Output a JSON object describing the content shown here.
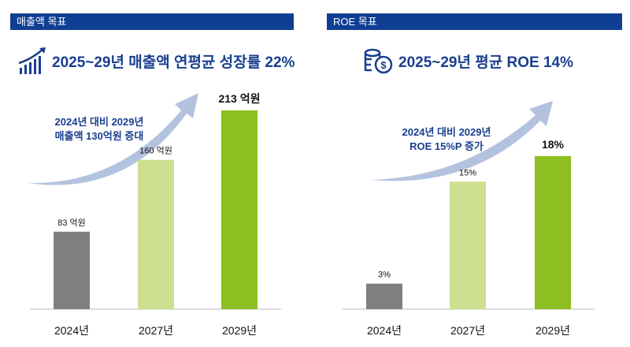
{
  "panels": [
    {
      "header": "매출액 목표",
      "title": "2025~29년 매출액 연평균 성장률 22%",
      "icon": "growth-chart-icon"
    },
    {
      "header": "ROE 목표",
      "title": "2025~29년 평균 ROE 14%",
      "icon": "coins-dollar-icon"
    }
  ],
  "colors": {
    "header": "#0f3f94",
    "title": "#1a3f8f",
    "arrow": "#b3c3df",
    "bars": [
      "#7f7f7f",
      "#cde08f",
      "#8cbf1f"
    ]
  },
  "chart_data": [
    {
      "type": "bar",
      "categories": [
        "2024년",
        "2027년",
        "2029년"
      ],
      "values": [
        83,
        160,
        213
      ],
      "labels": [
        "83 억원",
        "160 억원",
        "213 억원"
      ],
      "unit": "억원",
      "annotation": [
        "2024년 대비 2029년",
        "매출액 130억원 증대"
      ],
      "ylim": [
        0,
        213
      ]
    },
    {
      "type": "bar",
      "categories": [
        "2024년",
        "2027년",
        "2029년"
      ],
      "values": [
        3,
        15,
        18
      ],
      "labels": [
        "3%",
        "15%",
        "18%"
      ],
      "unit": "%",
      "annotation": [
        "2024년 대비 2029년",
        "ROE 15%P 증가"
      ],
      "ylim": [
        0,
        18
      ]
    }
  ]
}
